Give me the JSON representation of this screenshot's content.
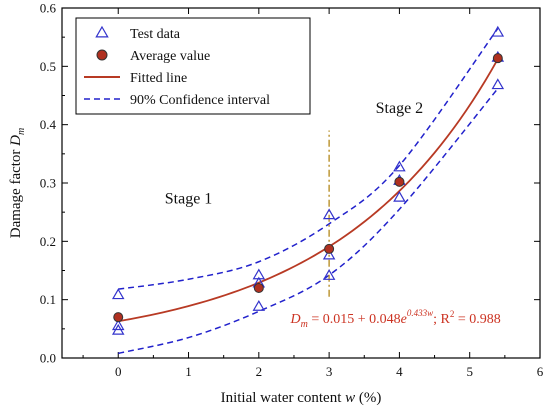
{
  "chart_data": {
    "type": "scatter",
    "xlabel": "Initial water content w (%)",
    "xlabel_parts": {
      "main": "Initial water content ",
      "var": "w",
      "unit": " (%)"
    },
    "ylabel": "Damage factor D_m",
    "ylabel_parts": {
      "main": "Damage factor ",
      "var": "D",
      "sub": "m"
    },
    "xlim": [
      -0.8,
      6
    ],
    "ylim": [
      0,
      0.6
    ],
    "xticks": [
      0,
      1,
      2,
      3,
      4,
      5,
      6
    ],
    "yticks": [
      0.0,
      0.1,
      0.2,
      0.3,
      0.4,
      0.5,
      0.6
    ],
    "xtick_labels": [
      "0",
      "1",
      "2",
      "3",
      "4",
      "5",
      "6"
    ],
    "ytick_labels": [
      "0.0",
      "0.1",
      "0.2",
      "0.3",
      "0.4",
      "0.5",
      "0.6"
    ],
    "grid": false,
    "legend_position": "top-left",
    "series": [
      {
        "name": "Test data",
        "kind": "marker-triangle",
        "color": "#3333cc",
        "points": [
          {
            "x": 0,
            "y": 0.108
          },
          {
            "x": 0,
            "y": 0.055
          },
          {
            "x": 0,
            "y": 0.047
          },
          {
            "x": 2,
            "y": 0.142
          },
          {
            "x": 2,
            "y": 0.128
          },
          {
            "x": 2,
            "y": 0.088
          },
          {
            "x": 3,
            "y": 0.245
          },
          {
            "x": 3,
            "y": 0.176
          },
          {
            "x": 3,
            "y": 0.141
          },
          {
            "x": 4,
            "y": 0.327
          },
          {
            "x": 4,
            "y": 0.304
          },
          {
            "x": 4,
            "y": 0.275
          },
          {
            "x": 5.4,
            "y": 0.558
          },
          {
            "x": 5.4,
            "y": 0.515
          },
          {
            "x": 5.4,
            "y": 0.468
          }
        ]
      },
      {
        "name": "Average value",
        "kind": "marker-circle",
        "color": "#b03020",
        "edge": "#333333",
        "points": [
          {
            "x": 0,
            "y": 0.07
          },
          {
            "x": 2,
            "y": 0.12
          },
          {
            "x": 3,
            "y": 0.187
          },
          {
            "x": 4,
            "y": 0.302
          },
          {
            "x": 5.4,
            "y": 0.514
          }
        ]
      },
      {
        "name": "Fitted line",
        "kind": "line",
        "color": "#b83a24",
        "x_range": [
          0,
          5.4
        ],
        "model": {
          "a": 0.015,
          "b": 0.048,
          "k": 0.433
        }
      },
      {
        "name": "90% Confidence interval",
        "kind": "dashed-band",
        "color": "#2222cc",
        "upper": [
          {
            "x": 0,
            "y": 0.118
          },
          {
            "x": 1,
            "y": 0.135
          },
          {
            "x": 2,
            "y": 0.165
          },
          {
            "x": 3,
            "y": 0.23
          },
          {
            "x": 4,
            "y": 0.33
          },
          {
            "x": 5.4,
            "y": 0.565
          }
        ],
        "lower": [
          {
            "x": 0,
            "y": 0.008
          },
          {
            "x": 1,
            "y": 0.035
          },
          {
            "x": 2,
            "y": 0.08
          },
          {
            "x": 3,
            "y": 0.142
          },
          {
            "x": 4,
            "y": 0.255
          },
          {
            "x": 5.4,
            "y": 0.462
          }
        ]
      }
    ],
    "divider": {
      "x": 3,
      "y_range": [
        0.105,
        0.39
      ],
      "color": "#b8902a"
    },
    "annotations": {
      "stage1": {
        "text": "Stage 1",
        "x": 1.0,
        "y": 0.265
      },
      "stage2": {
        "text": "Stage 2",
        "x": 4.0,
        "y": 0.42
      },
      "equation": {
        "var": "D",
        "sub": "m",
        "rhs": " = 0.015 + 0.048",
        "base": "e",
        "exp": "0.433w",
        "r2": "; R",
        "r2_sup": "2",
        "r2_val": " = 0.988",
        "x": 2.45,
        "y": 0.06
      }
    }
  }
}
